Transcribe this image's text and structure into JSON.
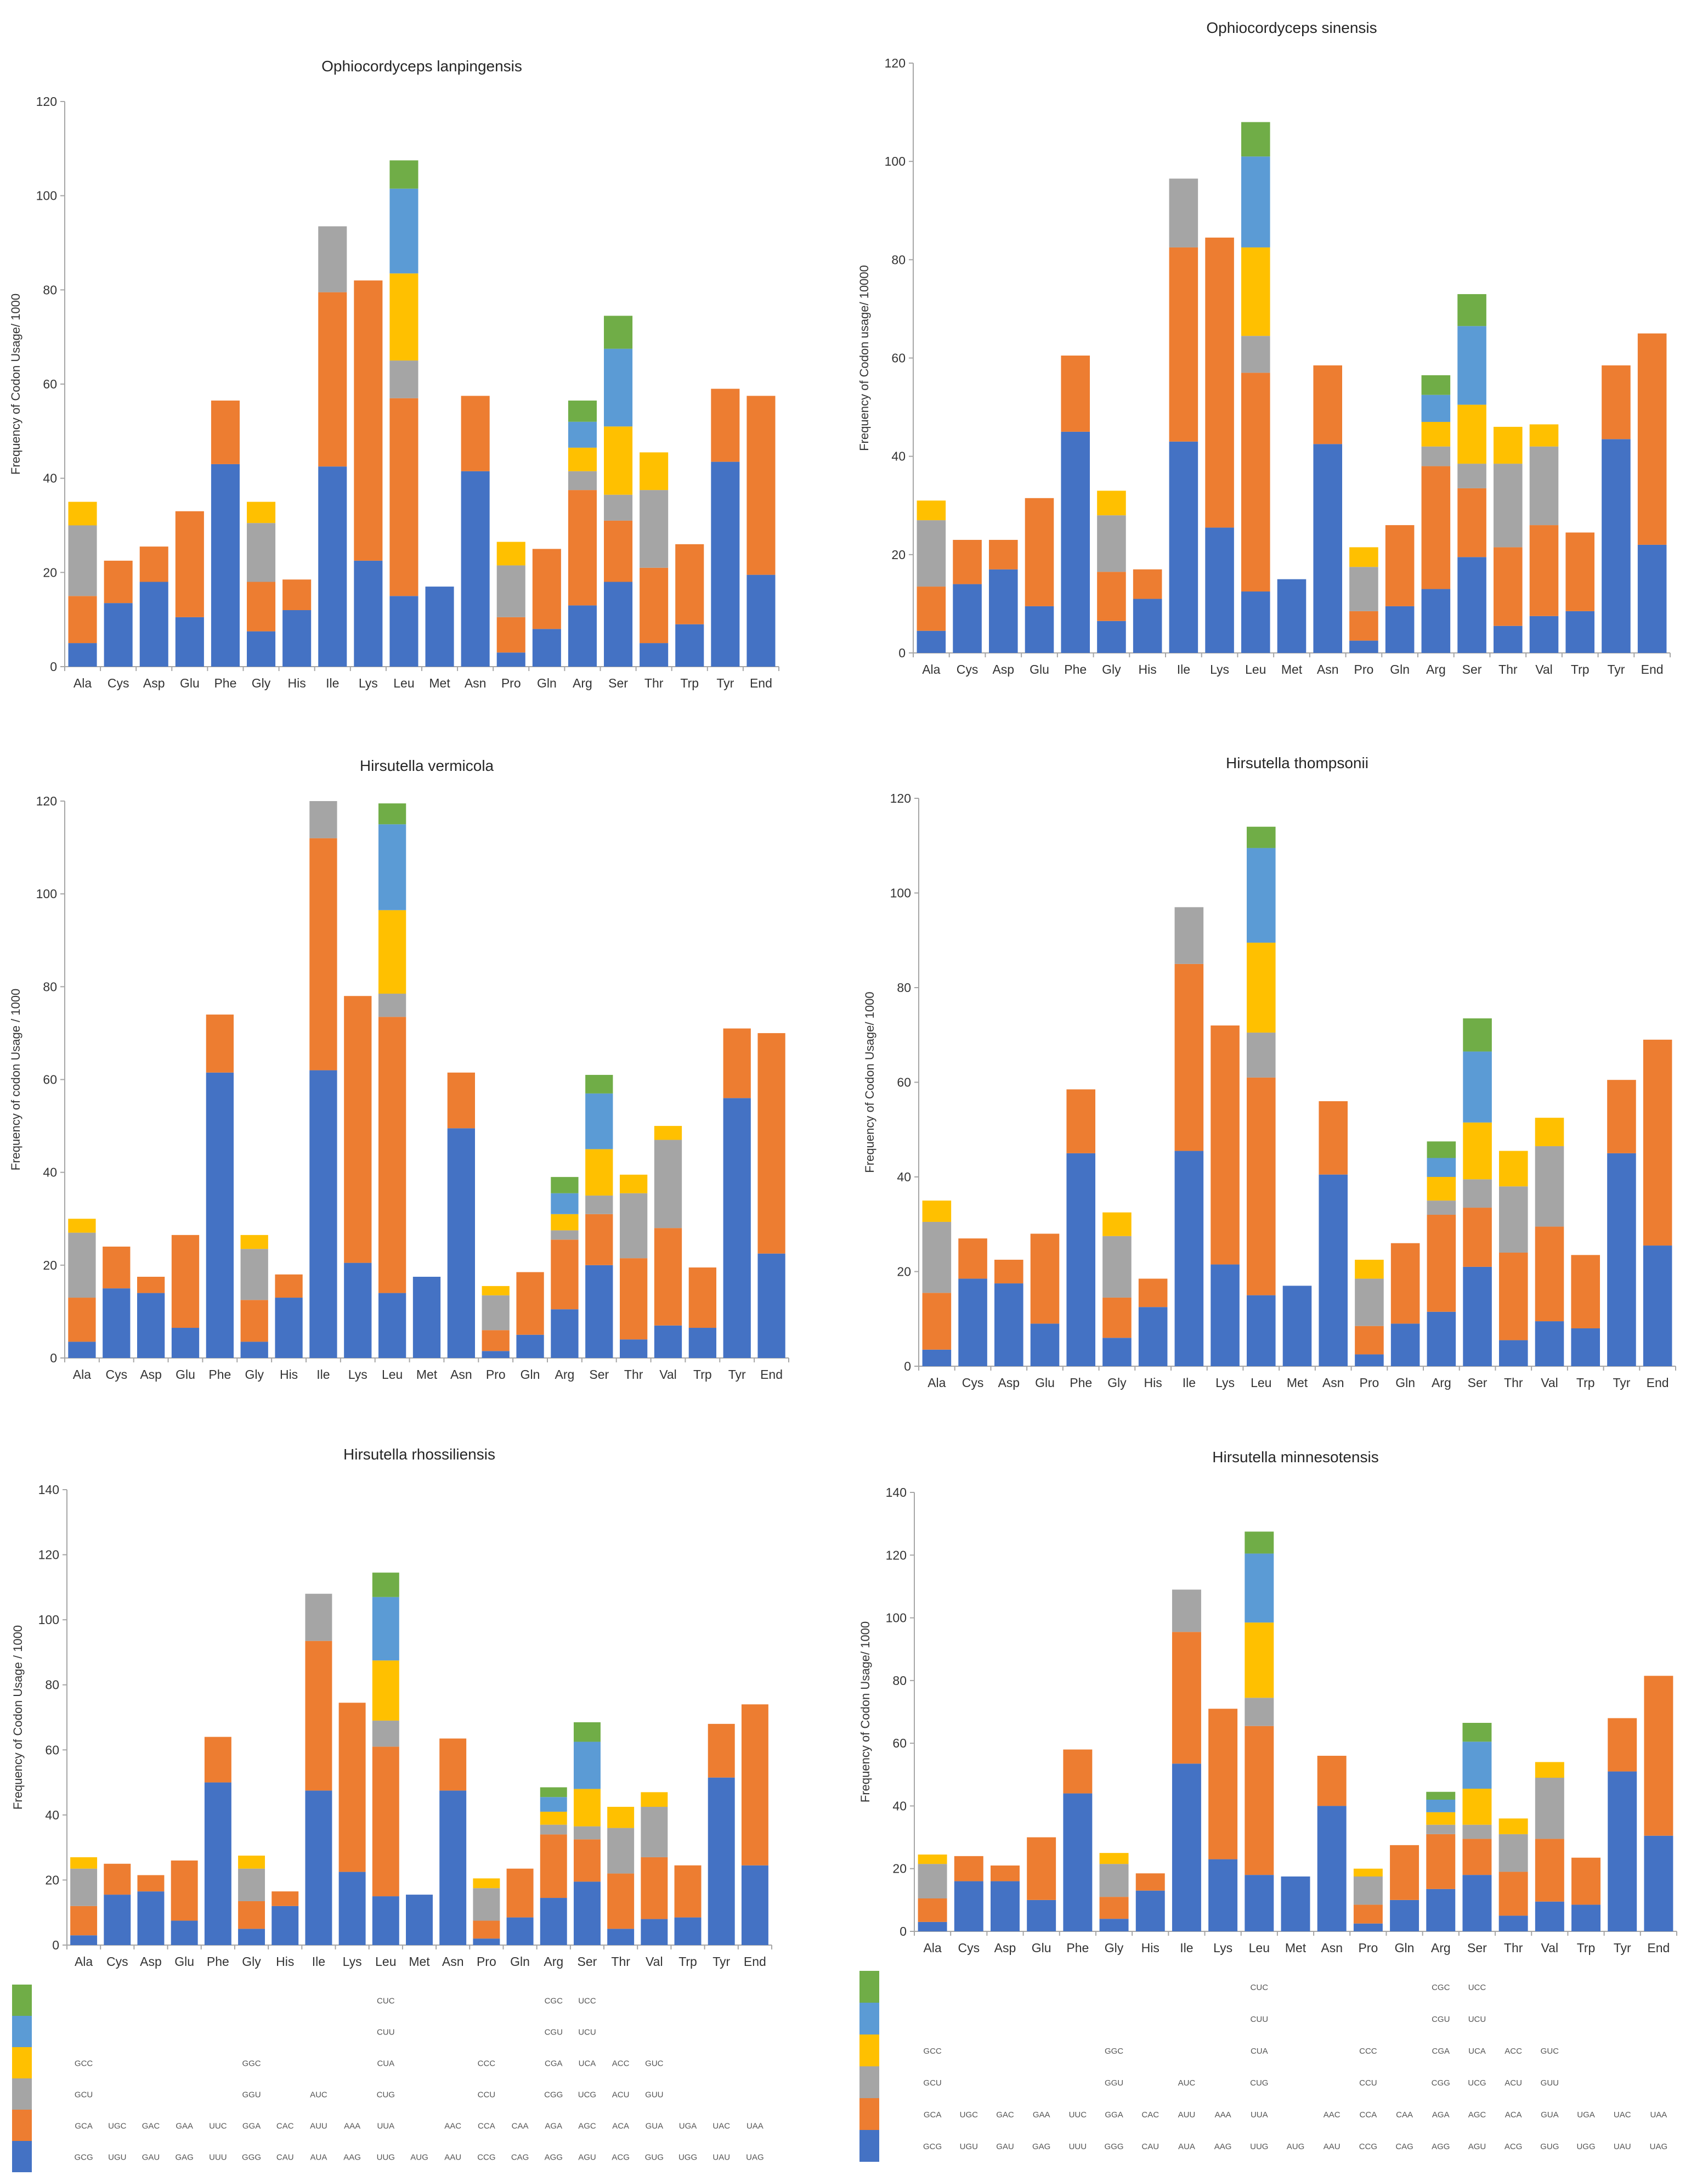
{
  "figure": {
    "description_colors": {
      "axis": "#a6a6a6",
      "text": "#333333"
    }
  },
  "series_colors": {
    "s1": "#4472c4",
    "s2": "#ed7d31",
    "s3": "#a5a5a5",
    "s4": "#ffc000",
    "s5": "#5b9bd5",
    "s6": "#70ad47"
  },
  "chart_data": [
    {
      "type": "bar",
      "stacked": true,
      "title": "Ophiocordyceps lanpingensis",
      "ylabel": "Frequency of Codon Usage/ 1000",
      "xlabel": "",
      "ylim": [
        0,
        120
      ],
      "yticks": [
        0,
        20,
        40,
        60,
        80,
        100,
        120
      ],
      "categories": [
        "Ala",
        "Cys",
        "Asp",
        "Glu",
        "Phe",
        "Gly",
        "His",
        "Ile",
        "Lys",
        "Leu",
        "Met",
        "Asn",
        "Pro",
        "Gln",
        "Arg",
        "Ser",
        "Thr",
        "Trp",
        "Tyr",
        "End"
      ],
      "stacks": [
        [
          5,
          10,
          15,
          5
        ],
        [
          13.5,
          9
        ],
        [
          18,
          7.5
        ],
        [
          10.5,
          22.5
        ],
        [
          43,
          13.5
        ],
        [
          7.5,
          10.5,
          12.5,
          4.5
        ],
        [
          12,
          6.5
        ],
        [
          42.5,
          37,
          14
        ],
        [
          22.5,
          59.5
        ],
        [
          15,
          42,
          8,
          18.5,
          18,
          6
        ],
        [
          17
        ],
        [
          41.5,
          16
        ],
        [
          3,
          7.5,
          11,
          5
        ],
        [
          8,
          17
        ],
        [
          13,
          24.5,
          4,
          5,
          5.5,
          4.5
        ],
        [
          18,
          13,
          5.5,
          14.5,
          16.5,
          7
        ],
        [
          5,
          16,
          16.5,
          8
        ],
        [
          9,
          17
        ],
        [
          43.5,
          15.5
        ],
        [
          19.5,
          38
        ]
      ]
    },
    {
      "type": "bar",
      "stacked": true,
      "title": "Ophiocordyceps sinensis",
      "ylabel": "Frequency of Codon usage/ 10000",
      "xlabel": "",
      "ylim": [
        0,
        120
      ],
      "yticks": [
        0,
        20,
        40,
        60,
        80,
        100,
        120
      ],
      "categories": [
        "Ala",
        "Cys",
        "Asp",
        "Glu",
        "Phe",
        "Gly",
        "His",
        "Ile",
        "Lys",
        "Leu",
        "Met",
        "Asn",
        "Pro",
        "Gln",
        "Arg",
        "Ser",
        "Thr",
        "Val",
        "Trp",
        "Tyr",
        "End"
      ],
      "stacks": [
        [
          4.5,
          9,
          13.5,
          4
        ],
        [
          14,
          9
        ],
        [
          17,
          6
        ],
        [
          9.5,
          22
        ],
        [
          45,
          15.5
        ],
        [
          6.5,
          10,
          11.5,
          5
        ],
        [
          11,
          6
        ],
        [
          43,
          39.5,
          14
        ],
        [
          25.5,
          59
        ],
        [
          12.5,
          44.5,
          7.5,
          18,
          18.5,
          7
        ],
        [
          15
        ],
        [
          42.5,
          16
        ],
        [
          2.5,
          6,
          9,
          4
        ],
        [
          9.5,
          16.5
        ],
        [
          13,
          25,
          4,
          5,
          5.5,
          4
        ],
        [
          19.5,
          14,
          5,
          12,
          16,
          6.5
        ],
        [
          5.5,
          16,
          17,
          7.5
        ],
        [
          7.5,
          18.5,
          16,
          4.5
        ],
        [
          8.5,
          16
        ],
        [
          43.5,
          15
        ],
        [
          22,
          43
        ]
      ]
    },
    {
      "type": "bar",
      "stacked": true,
      "title": "Hirsutella vermicola",
      "ylabel": "Frequency of codon Usage / 1000",
      "xlabel": "",
      "ylim": [
        0,
        120
      ],
      "yticks": [
        0,
        20,
        40,
        60,
        80,
        100,
        120
      ],
      "categories": [
        "Ala",
        "Cys",
        "Asp",
        "Glu",
        "Phe",
        "Gly",
        "His",
        "Ile",
        "Lys",
        "Leu",
        "Met",
        "Asn",
        "Pro",
        "Gln",
        "Arg",
        "Ser",
        "Thr",
        "Val",
        "Trp",
        "Tyr",
        "End"
      ],
      "stacks": [
        [
          3.5,
          9.5,
          14,
          3
        ],
        [
          15,
          9
        ],
        [
          14,
          3.5
        ],
        [
          6.5,
          20
        ],
        [
          61.5,
          12.5
        ],
        [
          3.5,
          9,
          11,
          3
        ],
        [
          13,
          5
        ],
        [
          62,
          50,
          8
        ],
        [
          20.5,
          57.5
        ],
        [
          14,
          59.5,
          5,
          18,
          18.5,
          4.5
        ],
        [
          17.5
        ],
        [
          49.5,
          12
        ],
        [
          1.5,
          4.5,
          7.5,
          2
        ],
        [
          5,
          13.5
        ],
        [
          10.5,
          15,
          2,
          3.5,
          4.5,
          3.5
        ],
        [
          20,
          11,
          4,
          10,
          12,
          4
        ],
        [
          4,
          17.5,
          14,
          4
        ],
        [
          7,
          21,
          19,
          3
        ],
        [
          6.5,
          13
        ],
        [
          56,
          15
        ],
        [
          22.5,
          47.5
        ]
      ]
    },
    {
      "type": "bar",
      "stacked": true,
      "title": "Hirsutella thompsonii",
      "ylabel": "Frequency of Codon Usage/ 1000",
      "xlabel": "",
      "ylim": [
        0,
        120
      ],
      "yticks": [
        0,
        20,
        40,
        60,
        80,
        100,
        120
      ],
      "categories": [
        "Ala",
        "Cys",
        "Asp",
        "Glu",
        "Phe",
        "Gly",
        "His",
        "Ile",
        "Lys",
        "Leu",
        "Met",
        "Asn",
        "Pro",
        "Gln",
        "Arg",
        "Ser",
        "Thr",
        "Val",
        "Trp",
        "Tyr",
        "End"
      ],
      "stacks": [
        [
          3.5,
          12,
          15,
          4.5
        ],
        [
          18.5,
          8.5
        ],
        [
          17.5,
          5
        ],
        [
          9,
          19
        ],
        [
          45,
          13.5
        ],
        [
          6,
          8.5,
          13,
          5
        ],
        [
          12.5,
          6
        ],
        [
          45.5,
          39.5,
          12
        ],
        [
          21.5,
          50.5
        ],
        [
          15,
          46,
          9.5,
          19,
          20,
          4.5
        ],
        [
          17
        ],
        [
          40.5,
          15.5
        ],
        [
          2.5,
          6,
          10,
          4
        ],
        [
          9,
          17
        ],
        [
          11.5,
          20.5,
          3,
          5,
          4,
          3.5
        ],
        [
          21,
          12.5,
          6,
          12,
          15,
          7
        ],
        [
          5.5,
          18.5,
          14,
          7.5
        ],
        [
          9.5,
          20,
          17,
          6
        ],
        [
          8,
          15.5
        ],
        [
          45,
          15.5
        ],
        [
          25.5,
          43.5
        ]
      ]
    },
    {
      "type": "bar",
      "stacked": true,
      "title": "Hirsutella rhossiliensis",
      "ylabel": "Frequency of Codon Usage / 1000",
      "xlabel": "",
      "ylim": [
        0,
        140
      ],
      "yticks": [
        0,
        20,
        40,
        60,
        80,
        100,
        120,
        140
      ],
      "categories": [
        "Ala",
        "Cys",
        "Asp",
        "Glu",
        "Phe",
        "Gly",
        "His",
        "Ile",
        "Lys",
        "Leu",
        "Met",
        "Asn",
        "Pro",
        "Gln",
        "Arg",
        "Ser",
        "Thr",
        "Val",
        "Trp",
        "Tyr",
        "End"
      ],
      "stacks": [
        [
          3,
          9,
          11.5,
          3.5
        ],
        [
          15.5,
          9.5
        ],
        [
          16.5,
          5
        ],
        [
          7.5,
          18.5
        ],
        [
          50,
          14
        ],
        [
          5,
          8.5,
          10,
          4
        ],
        [
          12,
          4.5
        ],
        [
          47.5,
          46,
          14.5
        ],
        [
          22.5,
          52
        ],
        [
          15,
          46,
          8,
          18.5,
          19.5,
          7.5
        ],
        [
          15.5
        ],
        [
          47.5,
          16
        ],
        [
          2,
          5.5,
          10,
          3
        ],
        [
          8.5,
          15
        ],
        [
          14.5,
          19.5,
          3,
          4,
          4.5,
          3
        ],
        [
          19.5,
          13,
          4,
          11.5,
          14.5,
          6
        ],
        [
          5,
          17,
          14,
          6.5
        ],
        [
          8,
          19,
          15.5,
          4.5
        ],
        [
          8.5,
          16
        ],
        [
          51.5,
          16.5
        ],
        [
          24.5,
          49.5
        ]
      ],
      "codon_table": {
        "rows": [
          [
            "",
            "",
            "",
            "",
            "",
            "",
            "",
            "",
            "",
            "CUC",
            "",
            "",
            "",
            "",
            "CGC",
            "UCC",
            "",
            "",
            "",
            "",
            ""
          ],
          [
            "",
            "",
            "",
            "",
            "",
            "",
            "",
            "",
            "",
            "CUU",
            "",
            "",
            "",
            "",
            "CGU",
            "UCU",
            "",
            "",
            "",
            "",
            ""
          ],
          [
            "GCC",
            "",
            "",
            "",
            "",
            "GGC",
            "",
            "",
            "",
            "CUA",
            "",
            "",
            "CCC",
            "",
            "CGA",
            "UCA",
            "ACC",
            "GUC",
            "",
            "",
            ""
          ],
          [
            "GCU",
            "",
            "",
            "",
            "",
            "GGU",
            "",
            "AUC",
            "",
            "CUG",
            "",
            "",
            "CCU",
            "",
            "CGG",
            "UCG",
            "ACU",
            "GUU",
            "",
            "",
            ""
          ],
          [
            "GCA",
            "UGC",
            "GAC",
            "GAA",
            "UUC",
            "GGA",
            "CAC",
            "AUU",
            "AAA",
            "UUA",
            "",
            "AAC",
            "CCA",
            "CAA",
            "AGA",
            "AGC",
            "ACA",
            "GUA",
            "UGA",
            "UAC",
            "UAA"
          ],
          [
            "GCG",
            "UGU",
            "GAU",
            "GAG",
            "UUU",
            "GGG",
            "CAU",
            "AUA",
            "AAG",
            "UUG",
            "AUG",
            "AAU",
            "CCG",
            "CAG",
            "AGG",
            "AGU",
            "ACG",
            "GUG",
            "UGG",
            "UAU",
            "UAG"
          ]
        ]
      }
    },
    {
      "type": "bar",
      "stacked": true,
      "title": "Hirsutella minnesotensis",
      "ylabel": "Frequency of Codon Usage/ 1000",
      "xlabel": "",
      "ylim": [
        0,
        140
      ],
      "yticks": [
        0,
        20,
        40,
        60,
        80,
        100,
        120,
        140
      ],
      "categories": [
        "Ala",
        "Cys",
        "Asp",
        "Glu",
        "Phe",
        "Gly",
        "His",
        "Ile",
        "Lys",
        "Leu",
        "Met",
        "Asn",
        "Pro",
        "Gln",
        "Arg",
        "Ser",
        "Thr",
        "Val",
        "Trp",
        "Tyr",
        "End"
      ],
      "stacks": [
        [
          3,
          7.5,
          11,
          3
        ],
        [
          16,
          8
        ],
        [
          16,
          5
        ],
        [
          10,
          20
        ],
        [
          44,
          14
        ],
        [
          4,
          7,
          10.5,
          3.5
        ],
        [
          13,
          5.5
        ],
        [
          53.5,
          42,
          13.5
        ],
        [
          23,
          48
        ],
        [
          18,
          47.5,
          9,
          24,
          22,
          7
        ],
        [
          17.5
        ],
        [
          40,
          16
        ],
        [
          2.5,
          6,
          9,
          2.5
        ],
        [
          10,
          17.5
        ],
        [
          13.5,
          17.5,
          3,
          4,
          4,
          2.5
        ],
        [
          18,
          11.5,
          4.5,
          11.5,
          15,
          6
        ],
        [
          5,
          14,
          12,
          5
        ],
        [
          9.5,
          20,
          19.5,
          5
        ],
        [
          8.5,
          15
        ],
        [
          51,
          17
        ],
        [
          30.5,
          51
        ]
      ],
      "codon_table": {
        "rows": [
          [
            "",
            "",
            "",
            "",
            "",
            "",
            "",
            "",
            "",
            "CUC",
            "",
            "",
            "",
            "",
            "CGC",
            "UCC",
            "",
            "",
            "",
            "",
            ""
          ],
          [
            "",
            "",
            "",
            "",
            "",
            "",
            "",
            "",
            "",
            "CUU",
            "",
            "",
            "",
            "",
            "CGU",
            "UCU",
            "",
            "",
            "",
            "",
            ""
          ],
          [
            "GCC",
            "",
            "",
            "",
            "",
            "GGC",
            "",
            "",
            "",
            "CUA",
            "",
            "",
            "CCC",
            "",
            "CGA",
            "UCA",
            "ACC",
            "GUC",
            "",
            "",
            ""
          ],
          [
            "GCU",
            "",
            "",
            "",
            "",
            "GGU",
            "",
            "AUC",
            "",
            "CUG",
            "",
            "",
            "CCU",
            "",
            "CGG",
            "UCG",
            "ACU",
            "GUU",
            "",
            "",
            ""
          ],
          [
            "GCA",
            "UGC",
            "GAC",
            "GAA",
            "UUC",
            "GGA",
            "CAC",
            "AUU",
            "AAA",
            "UUA",
            "",
            "AAC",
            "CCA",
            "CAA",
            "AGA",
            "AGC",
            "ACA",
            "GUA",
            "UGA",
            "UAC",
            "UAA"
          ],
          [
            "GCG",
            "UGU",
            "GAU",
            "GAG",
            "UUU",
            "GGG",
            "CAU",
            "AUA",
            "AAG",
            "UUG",
            "AUG",
            "AAU",
            "CCG",
            "CAG",
            "AGG",
            "AGU",
            "ACG",
            "GUG",
            "UGG",
            "UAU",
            "UAG"
          ]
        ]
      }
    }
  ],
  "legend_swatches": {
    "rows": [
      "s6",
      "s5",
      "s4",
      "s3",
      "s2",
      "s1"
    ]
  }
}
